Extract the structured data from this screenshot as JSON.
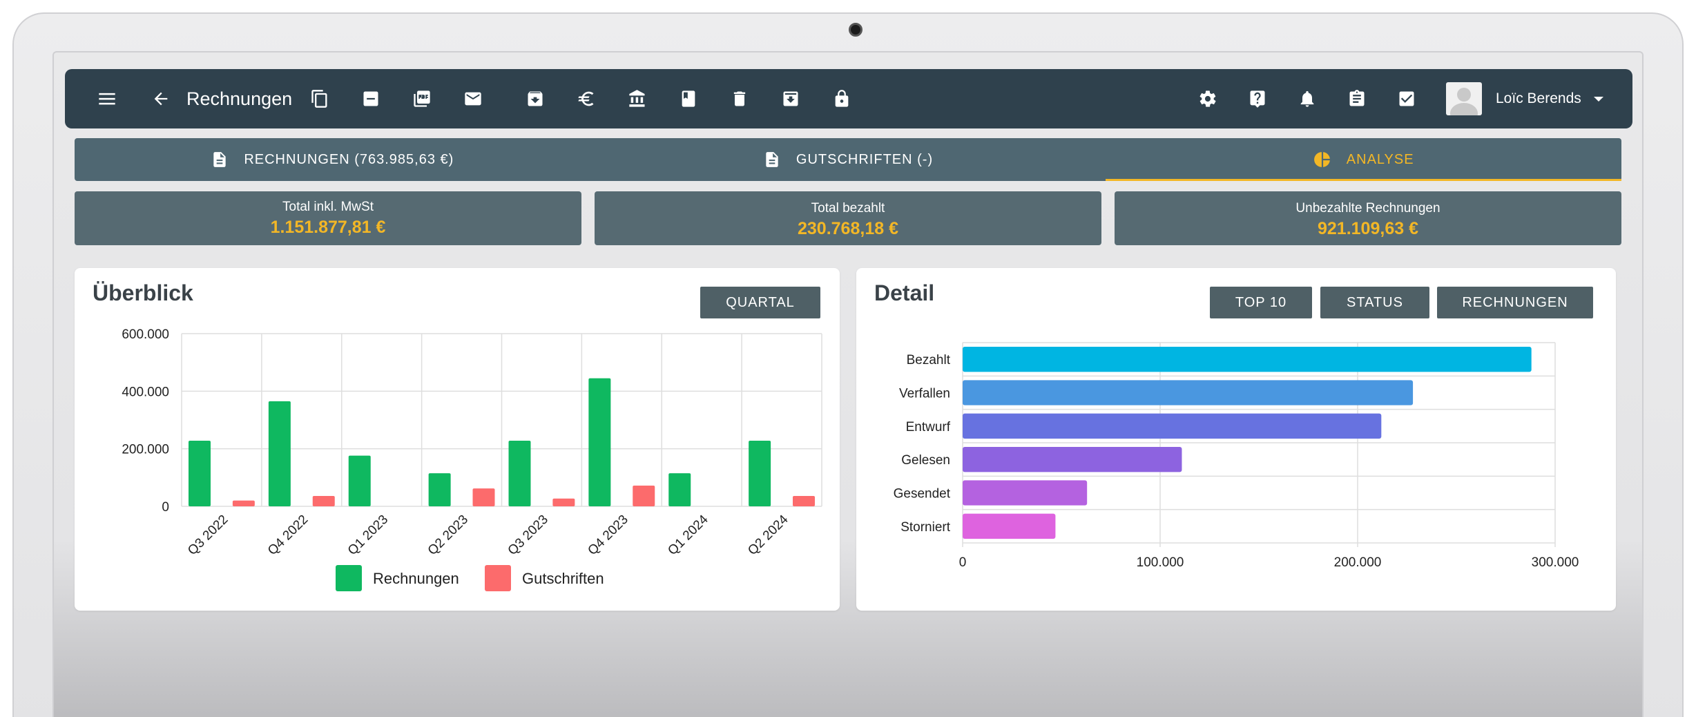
{
  "toolbar": {
    "title": "Rechnungen",
    "icons": [
      "menu-icon",
      "back-arrow-icon",
      "copy-icon",
      "minus-icon",
      "pdf-icon",
      "mail-icon",
      "download-icon",
      "euro-icon",
      "bank-icon",
      "book-icon",
      "trash-icon",
      "archive-icon",
      "lock-icon",
      "gear-icon",
      "help-icon",
      "bell-icon",
      "clipboard-icon",
      "checkbox-icon"
    ],
    "user_name": "Loïc Berends"
  },
  "tabs": [
    {
      "label": "RECHNUNGEN (763.985,63 €)",
      "icon": "document-icon",
      "active": false
    },
    {
      "label": "GUTSCHRIFTEN (-)",
      "icon": "document-icon",
      "active": false
    },
    {
      "label": "ANALYSE",
      "icon": "pie-chart-icon",
      "active": true
    }
  ],
  "stats": [
    {
      "label": "Total inkl. MwSt",
      "value": "1.151.877,81 €"
    },
    {
      "label": "Total bezahlt",
      "value": "230.768,18 €"
    },
    {
      "label": "Unbezahlte Rechnungen",
      "value": "921.109,63 €"
    }
  ],
  "colors": {
    "accent": "#f3b726",
    "toolbar": "#2f414d",
    "tabs": "#4f6772",
    "rechnungen": "#0fb860",
    "gutschriften": "#fc6b6c"
  },
  "overview": {
    "title": "Überblick",
    "button": "QUARTAL"
  },
  "detail": {
    "title": "Detail",
    "buttons": [
      "TOP 10",
      "STATUS",
      "RECHNUNGEN"
    ]
  },
  "chart_data": [
    {
      "type": "bar",
      "categories": [
        "Q3 2022",
        "Q4 2022",
        "Q1 2023",
        "Q2 2023",
        "Q3 2023",
        "Q4 2023",
        "Q1 2024",
        "Q2 2024"
      ],
      "series": [
        {
          "name": "Rechnungen",
          "values": [
            228000,
            365000,
            176000,
            115000,
            228000,
            445000,
            115000,
            228000
          ],
          "color": "#0fb860"
        },
        {
          "name": "Gutschriften",
          "values": [
            20000,
            36000,
            0,
            62000,
            27000,
            72000,
            0,
            36000
          ],
          "color": "#fc6b6c"
        }
      ],
      "ylim": [
        0,
        600000
      ],
      "yticks": [
        "0",
        "200.000",
        "400.000",
        "600.000"
      ],
      "yticks_values": [
        0,
        200000,
        400000,
        600000
      ],
      "grid": true,
      "legend": "bottom"
    },
    {
      "type": "bar",
      "orientation": "horizontal",
      "categories": [
        "Bezahlt",
        "Verfallen",
        "Entwurf",
        "Gelesen",
        "Gesendet",
        "Storniert"
      ],
      "values": [
        288000,
        228000,
        212000,
        111000,
        63000,
        47000
      ],
      "colors": [
        "#00b5e2",
        "#4a97e0",
        "#6772e0",
        "#8d63e0",
        "#b462e0",
        "#de63df"
      ],
      "xlim": [
        0,
        300000
      ],
      "xticks": [
        "0",
        "100.000",
        "200.000",
        "300.000"
      ],
      "xticks_values": [
        0,
        100000,
        200000,
        300000
      ],
      "grid": true
    }
  ]
}
